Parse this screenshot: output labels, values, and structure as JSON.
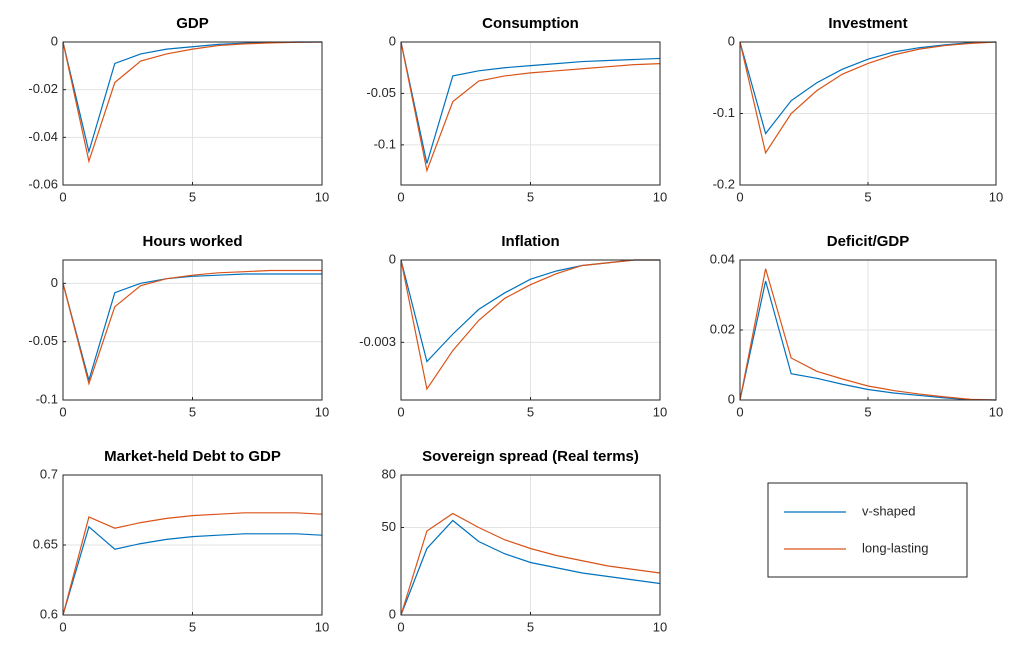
{
  "chart_data": [
    {
      "type": "line",
      "title": "GDP",
      "x": [
        0,
        1,
        2,
        3,
        4,
        5,
        6,
        7,
        8,
        9,
        10
      ],
      "xlim": [
        0,
        10
      ],
      "xticks": [
        0,
        5,
        10
      ],
      "ylim": [
        -0.06,
        0
      ],
      "yticks": [
        -0.06,
        -0.04,
        -0.02,
        0
      ],
      "grid": true,
      "series": [
        {
          "values": [
            0,
            -0.046,
            -0.009,
            -0.005,
            -0.003,
            -0.002,
            -0.001,
            -0.0005,
            -0.0002,
            0,
            0
          ]
        },
        {
          "values": [
            0,
            -0.05,
            -0.017,
            -0.008,
            -0.005,
            -0.003,
            -0.0015,
            -0.0008,
            -0.0004,
            -0.0001,
            0
          ]
        }
      ]
    },
    {
      "type": "line",
      "title": "Consumption",
      "x": [
        0,
        1,
        2,
        3,
        4,
        5,
        6,
        7,
        8,
        9,
        10
      ],
      "xlim": [
        0,
        10
      ],
      "xticks": [
        0,
        5,
        10
      ],
      "ylim": [
        -0.139,
        0
      ],
      "yticks": [
        -0.1,
        -0.05,
        0
      ],
      "grid": true,
      "series": [
        {
          "values": [
            0,
            -0.118,
            -0.033,
            -0.028,
            -0.025,
            -0.023,
            -0.021,
            -0.019,
            -0.018,
            -0.017,
            -0.016
          ]
        },
        {
          "values": [
            0,
            -0.125,
            -0.058,
            -0.038,
            -0.033,
            -0.03,
            -0.028,
            -0.026,
            -0.024,
            -0.022,
            -0.021
          ]
        }
      ]
    },
    {
      "type": "line",
      "title": "Investment",
      "x": [
        0,
        1,
        2,
        3,
        4,
        5,
        6,
        7,
        8,
        9,
        10
      ],
      "xlim": [
        0,
        10
      ],
      "xticks": [
        0,
        5,
        10
      ],
      "ylim": [
        -0.2,
        0
      ],
      "yticks": [
        -0.2,
        -0.1,
        0
      ],
      "grid": true,
      "series": [
        {
          "values": [
            0,
            -0.128,
            -0.082,
            -0.057,
            -0.038,
            -0.024,
            -0.014,
            -0.008,
            -0.004,
            -0.001,
            0
          ]
        },
        {
          "values": [
            0,
            -0.155,
            -0.1,
            -0.068,
            -0.045,
            -0.03,
            -0.018,
            -0.01,
            -0.005,
            -0.002,
            0
          ]
        }
      ]
    },
    {
      "type": "line",
      "title": "Hours worked",
      "x": [
        0,
        1,
        2,
        3,
        4,
        5,
        6,
        7,
        8,
        9,
        10
      ],
      "xlim": [
        0,
        10
      ],
      "xticks": [
        0,
        5,
        10
      ],
      "ylim": [
        -0.1,
        0.02
      ],
      "yticks": [
        -0.1,
        -0.05,
        0
      ],
      "grid": true,
      "series": [
        {
          "values": [
            0,
            -0.083,
            -0.008,
            0,
            0.004,
            0.006,
            0.007,
            0.008,
            0.008,
            0.008,
            0.008
          ]
        },
        {
          "values": [
            0,
            -0.086,
            -0.02,
            -0.002,
            0.004,
            0.007,
            0.009,
            0.01,
            0.011,
            0.011,
            0.011
          ]
        }
      ]
    },
    {
      "type": "line",
      "title": "Inflation",
      "x": [
        0,
        1,
        2,
        3,
        4,
        5,
        6,
        7,
        8,
        9,
        10
      ],
      "xlim": [
        0,
        10
      ],
      "xticks": [
        0,
        5,
        10
      ],
      "ylim": [
        -0.0051,
        0
      ],
      "yticks": [
        -0.003,
        0
      ],
      "grid": true,
      "series": [
        {
          "values": [
            0,
            -0.0037,
            -0.0027,
            -0.0018,
            -0.0012,
            -0.0007,
            -0.0004,
            -0.0002,
            -0.0001,
            0,
            0
          ]
        },
        {
          "values": [
            0,
            -0.0047,
            -0.0033,
            -0.0022,
            -0.0014,
            -0.0009,
            -0.0005,
            -0.0002,
            -0.0001,
            0,
            0
          ]
        }
      ]
    },
    {
      "type": "line",
      "title": "Deficit/GDP",
      "x": [
        0,
        1,
        2,
        3,
        4,
        5,
        6,
        7,
        8,
        9,
        10
      ],
      "xlim": [
        0,
        10
      ],
      "xticks": [
        0,
        5,
        10
      ],
      "ylim": [
        0,
        0.04
      ],
      "yticks": [
        0,
        0.02,
        0.04
      ],
      "grid": true,
      "series": [
        {
          "values": [
            0,
            0.034,
            0.0075,
            0.0062,
            0.0045,
            0.003,
            0.002,
            0.0013,
            0.0006,
            0.0001,
            0
          ]
        },
        {
          "values": [
            0,
            0.0375,
            0.012,
            0.0082,
            0.006,
            0.004,
            0.0027,
            0.0017,
            0.0009,
            0.0002,
            0
          ]
        }
      ]
    },
    {
      "type": "line",
      "title": "Market-held Debt to GDP",
      "x": [
        0,
        1,
        2,
        3,
        4,
        5,
        6,
        7,
        8,
        9,
        10
      ],
      "xlim": [
        0,
        10
      ],
      "xticks": [
        0,
        5,
        10
      ],
      "ylim": [
        0.6,
        0.7
      ],
      "yticks": [
        0.6,
        0.65,
        0.7
      ],
      "grid": true,
      "series": [
        {
          "values": [
            0.6,
            0.663,
            0.647,
            0.651,
            0.654,
            0.656,
            0.657,
            0.658,
            0.658,
            0.658,
            0.657
          ]
        },
        {
          "values": [
            0.6,
            0.67,
            0.662,
            0.666,
            0.669,
            0.671,
            0.672,
            0.673,
            0.673,
            0.673,
            0.672
          ]
        }
      ]
    },
    {
      "type": "line",
      "title": "Sovereign spread (Real terms)",
      "x": [
        0,
        1,
        2,
        3,
        4,
        5,
        6,
        7,
        8,
        9,
        10
      ],
      "xlim": [
        0,
        10
      ],
      "xticks": [
        0,
        5,
        10
      ],
      "ylim": [
        0,
        80
      ],
      "yticks": [
        0,
        50,
        80
      ],
      "grid": true,
      "series": [
        {
          "values": [
            0,
            38,
            54,
            42,
            35,
            30,
            27,
            24,
            22,
            20,
            18
          ]
        },
        {
          "values": [
            0,
            48,
            58,
            50,
            43,
            38,
            34,
            31,
            28,
            26,
            24
          ]
        }
      ]
    }
  ],
  "legend": [
    {
      "name": "v-shaped",
      "color": "#0072bd"
    },
    {
      "name": "long-lasting",
      "color": "#d95319"
    }
  ]
}
